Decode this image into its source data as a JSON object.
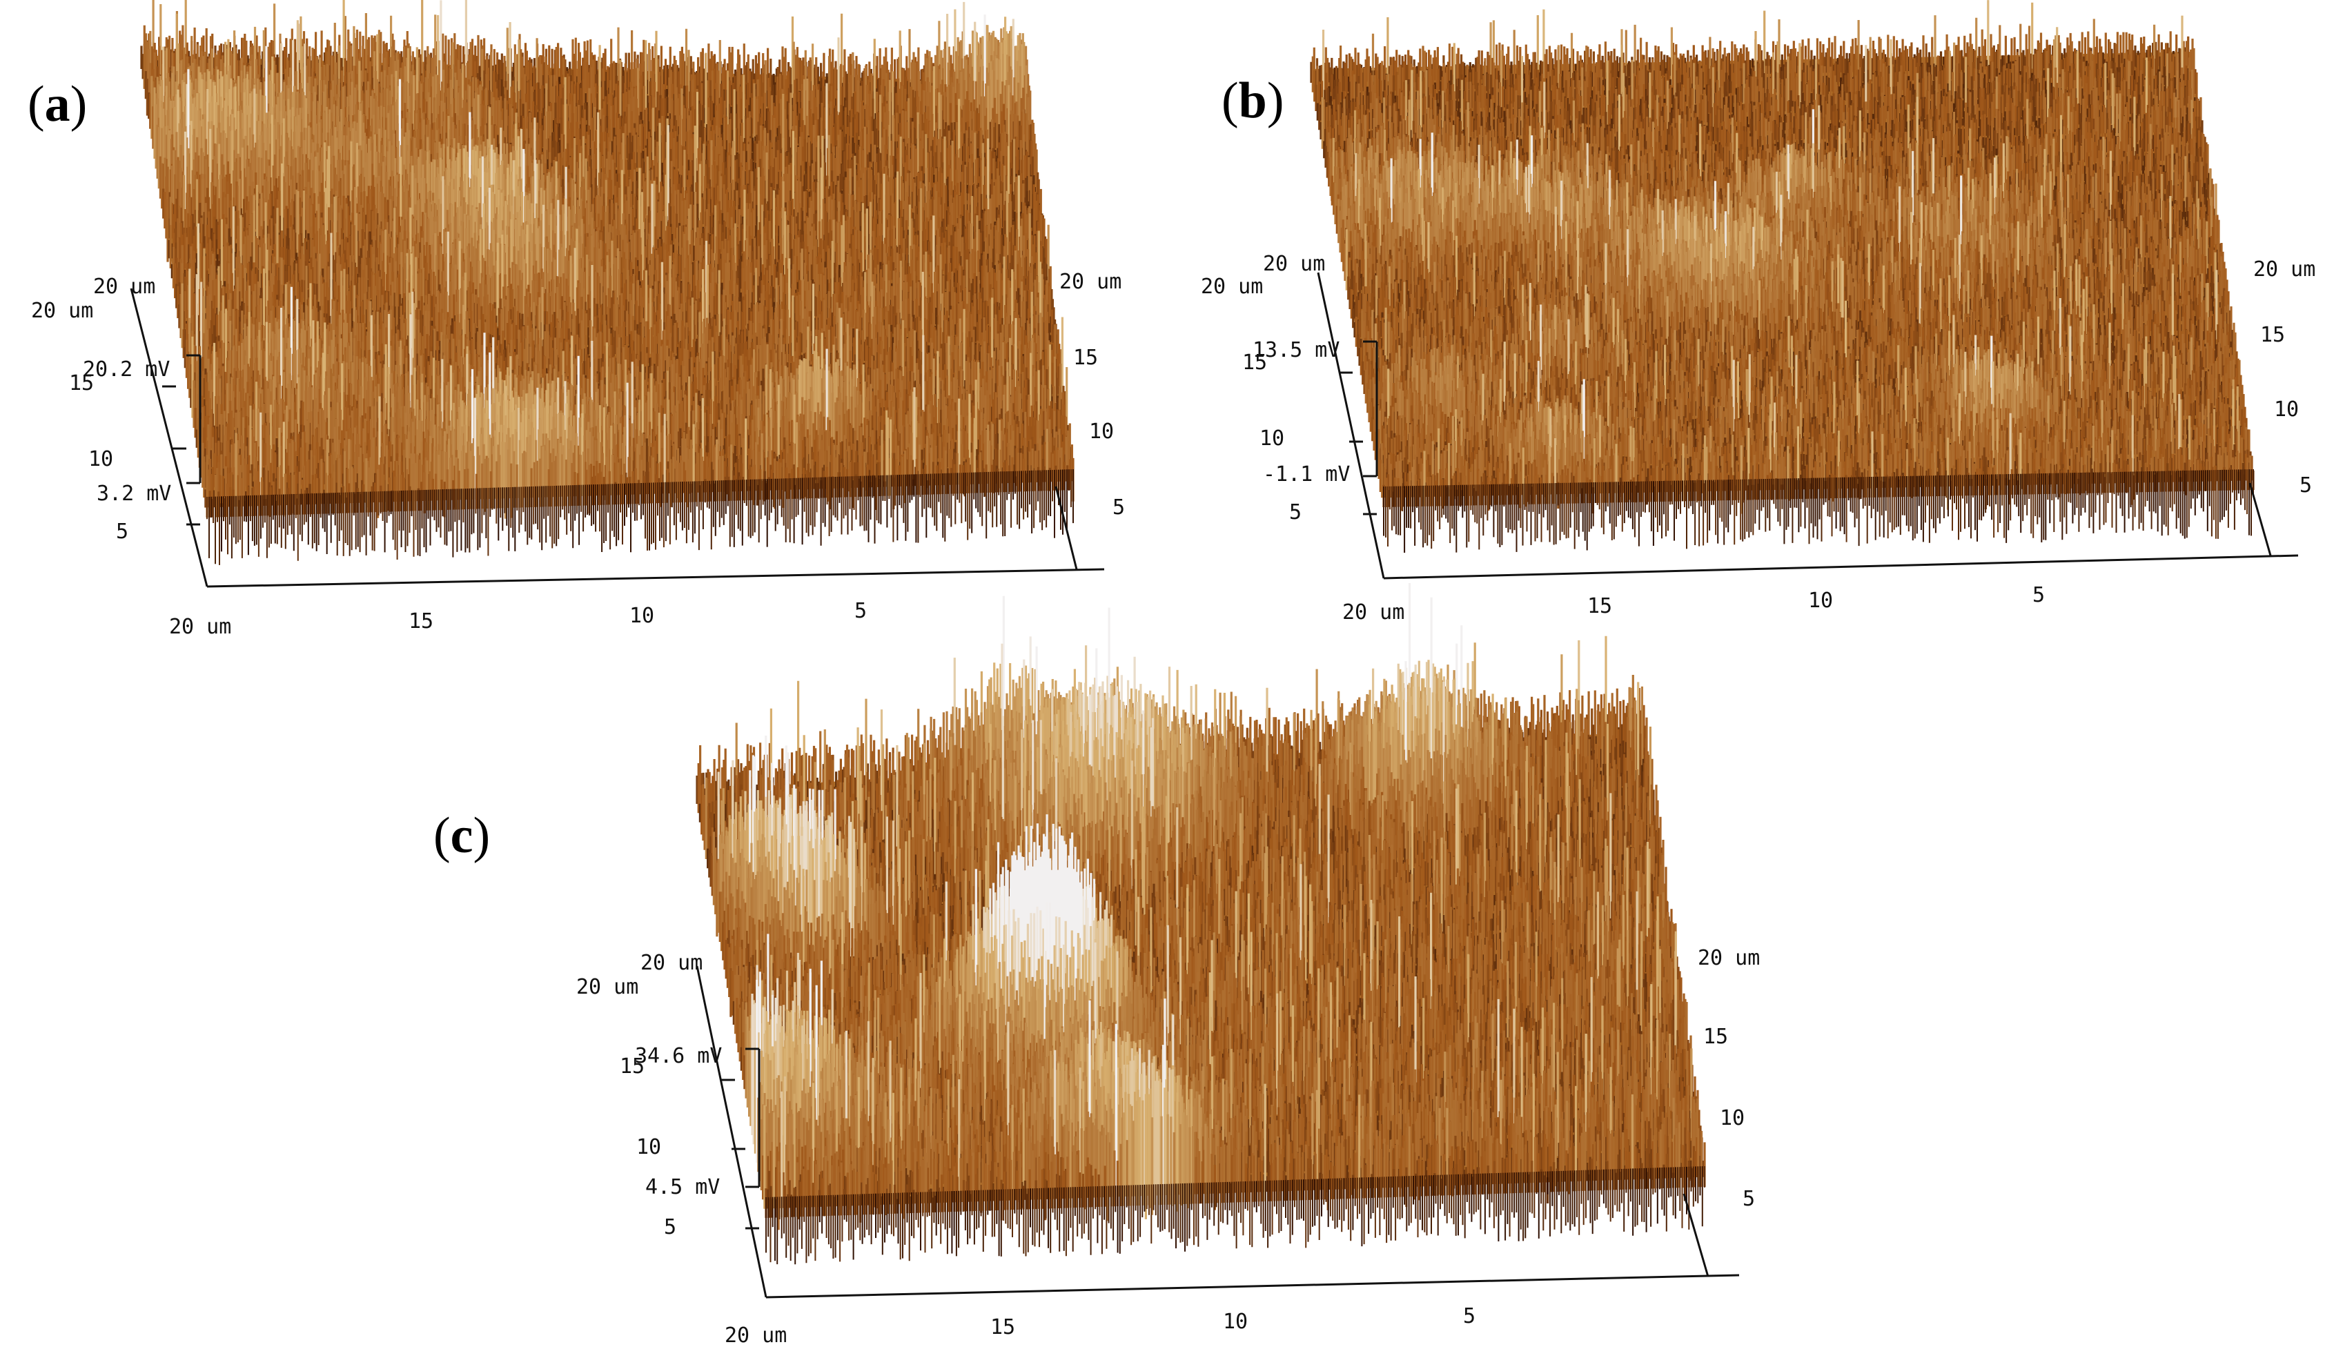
{
  "panels": [
    {
      "label": "a",
      "z_max_label": "20.2 mV",
      "z_min_label": "3.2 mV",
      "depth_title_left": "20 um",
      "depth_title_left2": "20 um",
      "left_ticks": [
        "15",
        "10",
        "5"
      ],
      "right_ticks": [
        "20 um",
        "15",
        "10",
        "5"
      ],
      "bottom_ticks": [
        "20 um",
        "15",
        "10",
        "5"
      ],
      "roughness": 0.55,
      "colors": {
        "dark": "#2a0c00",
        "mid": "#a0581a",
        "light": "#d8b070",
        "highlight": "#f2f0f0"
      }
    },
    {
      "label": "b",
      "z_max_label": "13.5 mV",
      "z_min_label": "-1.1 mV",
      "depth_title_left": "20 um",
      "depth_title_left2": "20 um",
      "left_ticks": [
        "15",
        "10",
        "5"
      ],
      "right_ticks": [
        "20 um",
        "15",
        "10",
        "5"
      ],
      "bottom_ticks": [
        "20 um",
        "15",
        "10",
        "5"
      ],
      "roughness": 0.45,
      "colors": {
        "dark": "#2a0c00",
        "mid": "#a0581a",
        "light": "#d8b070",
        "highlight": "#f2f0f0"
      }
    },
    {
      "label": "c",
      "z_max_label": "34.6 mV",
      "z_min_label": "4.5 mV",
      "depth_title_left": "20 um",
      "depth_title_left2": "20 um",
      "left_ticks": [
        "15",
        "10",
        "5"
      ],
      "right_ticks": [
        "20 um",
        "15",
        "10",
        "5"
      ],
      "bottom_ticks": [
        "20 um",
        "15",
        "10",
        "5"
      ],
      "roughness": 0.8,
      "colors": {
        "dark": "#2a0c00",
        "mid": "#a0581a",
        "light": "#d8b070",
        "highlight": "#f2f0f0"
      }
    }
  ]
}
